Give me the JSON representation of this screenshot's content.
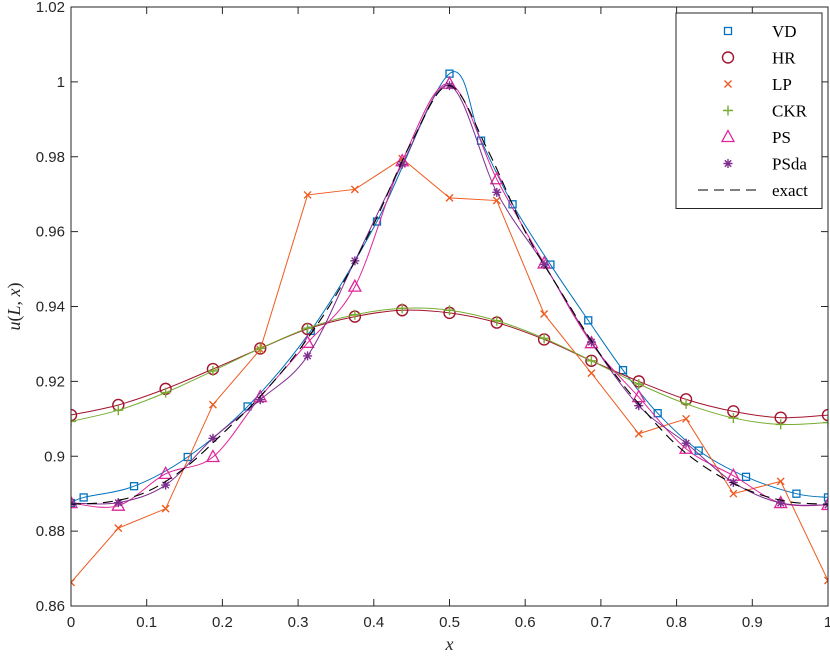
{
  "chart_data": {
    "type": "line",
    "title": "",
    "xlabel": "x",
    "ylabel": "u(L, x)",
    "xlim": [
      0,
      1
    ],
    "ylim": [
      0.86,
      1.02
    ],
    "xticks": [
      "0",
      "0.1",
      "0.2",
      "0.3",
      "0.4",
      "0.5",
      "0.6",
      "0.7",
      "0.8",
      "0.9",
      "1"
    ],
    "yticks": [
      "0.86",
      "0.88",
      "0.9",
      "0.92",
      "0.94",
      "0.96",
      "0.98",
      "1",
      "1.02"
    ],
    "grid": false,
    "legend_position": "top-right",
    "series": [
      {
        "name": "VD",
        "color": "#0072BD",
        "marker": "square",
        "line": "solid",
        "x": [
          0,
          0.0167,
          0.0833,
          0.1542,
          0.2333,
          0.3167,
          0.4042,
          0.5,
          0.5417,
          0.5833,
          0.6333,
          0.6833,
          0.7292,
          0.775,
          0.8292,
          0.8917,
          0.9583,
          1
        ],
        "y": [
          0.8875,
          0.889,
          0.892,
          0.8998,
          0.9133,
          0.9335,
          0.9627,
          1.0022,
          0.9843,
          0.9673,
          0.9512,
          0.9363,
          0.923,
          0.9115,
          0.9015,
          0.8945,
          0.89,
          0.889
        ]
      },
      {
        "name": "HR",
        "color": "#A2142F",
        "marker": "circle",
        "line": "solid",
        "x": [
          0,
          0.0625,
          0.125,
          0.1875,
          0.25,
          0.3125,
          0.375,
          0.4375,
          0.5,
          0.5625,
          0.625,
          0.6875,
          0.75,
          0.8125,
          0.875,
          0.9375,
          1
        ],
        "y": [
          0.911,
          0.9137,
          0.918,
          0.9233,
          0.9288,
          0.934,
          0.9373,
          0.939,
          0.9383,
          0.9357,
          0.9312,
          0.9255,
          0.92,
          0.9152,
          0.912,
          0.9103,
          0.911
        ]
      },
      {
        "name": "LP",
        "color": "#EF5A1F",
        "marker": "x",
        "line": "solid",
        "x": [
          0,
          0.0625,
          0.125,
          0.1875,
          0.25,
          0.3125,
          0.375,
          0.4375,
          0.5,
          0.5625,
          0.625,
          0.6875,
          0.75,
          0.8125,
          0.875,
          0.9375,
          1
        ],
        "y": [
          0.8663,
          0.8808,
          0.886,
          0.9138,
          0.9285,
          0.9698,
          0.9713,
          0.9795,
          0.969,
          0.9683,
          0.938,
          0.9222,
          0.906,
          0.91,
          0.89,
          0.8933,
          0.8668
        ]
      },
      {
        "name": "CKR",
        "color": "#77AC30",
        "marker": "plus",
        "line": "solid",
        "x": [
          0,
          0.0625,
          0.125,
          0.1875,
          0.25,
          0.3125,
          0.375,
          0.4375,
          0.5,
          0.5625,
          0.625,
          0.6875,
          0.75,
          0.8125,
          0.875,
          0.9375,
          1
        ],
        "y": [
          0.9093,
          0.9123,
          0.917,
          0.9228,
          0.9288,
          0.9342,
          0.9378,
          0.9395,
          0.939,
          0.9362,
          0.9315,
          0.9255,
          0.9193,
          0.914,
          0.9102,
          0.9085,
          0.909
        ]
      },
      {
        "name": "PS",
        "color": "#E0249A",
        "marker": "triangle",
        "line": "solid",
        "x": [
          0,
          0.0625,
          0.125,
          0.1875,
          0.25,
          0.3125,
          0.375,
          0.4375,
          0.5,
          0.5625,
          0.625,
          0.6875,
          0.75,
          0.8125,
          0.875,
          0.9375,
          1
        ],
        "y": [
          0.8875,
          0.8868,
          0.8953,
          0.8998,
          0.9158,
          0.9303,
          0.9453,
          0.9788,
          0.9995,
          0.974,
          0.9515,
          0.9302,
          0.9158,
          0.902,
          0.8948,
          0.8875,
          0.887
        ]
      },
      {
        "name": "PSda",
        "color": "#7E2F8E",
        "marker": "asterisk",
        "line": "solid",
        "x": [
          0,
          0.0625,
          0.125,
          0.1875,
          0.25,
          0.3125,
          0.375,
          0.4375,
          0.5,
          0.5625,
          0.625,
          0.6875,
          0.75,
          0.8125,
          0.875,
          0.9375,
          1
        ],
        "y": [
          0.8875,
          0.8876,
          0.8923,
          0.9048,
          0.9151,
          0.9268,
          0.9522,
          0.978,
          0.999,
          0.9705,
          0.9512,
          0.9305,
          0.9135,
          0.9035,
          0.893,
          0.8875,
          0.887
        ]
      },
      {
        "name": "exact",
        "color": "#000000",
        "marker": "none",
        "line": "dashed",
        "x": [
          0,
          0.05,
          0.1,
          0.15,
          0.2,
          0.25,
          0.3,
          0.35,
          0.4,
          0.45,
          0.5,
          0.55,
          0.6,
          0.65,
          0.7,
          0.75,
          0.8,
          0.85,
          0.9,
          0.95,
          1
        ],
        "y": [
          0.8872,
          0.8878,
          0.8905,
          0.8968,
          0.906,
          0.916,
          0.928,
          0.943,
          0.962,
          0.984,
          0.999,
          0.982,
          0.96,
          0.943,
          0.927,
          0.914,
          0.903,
          0.8955,
          0.8905,
          0.8878,
          0.8872
        ]
      }
    ]
  }
}
